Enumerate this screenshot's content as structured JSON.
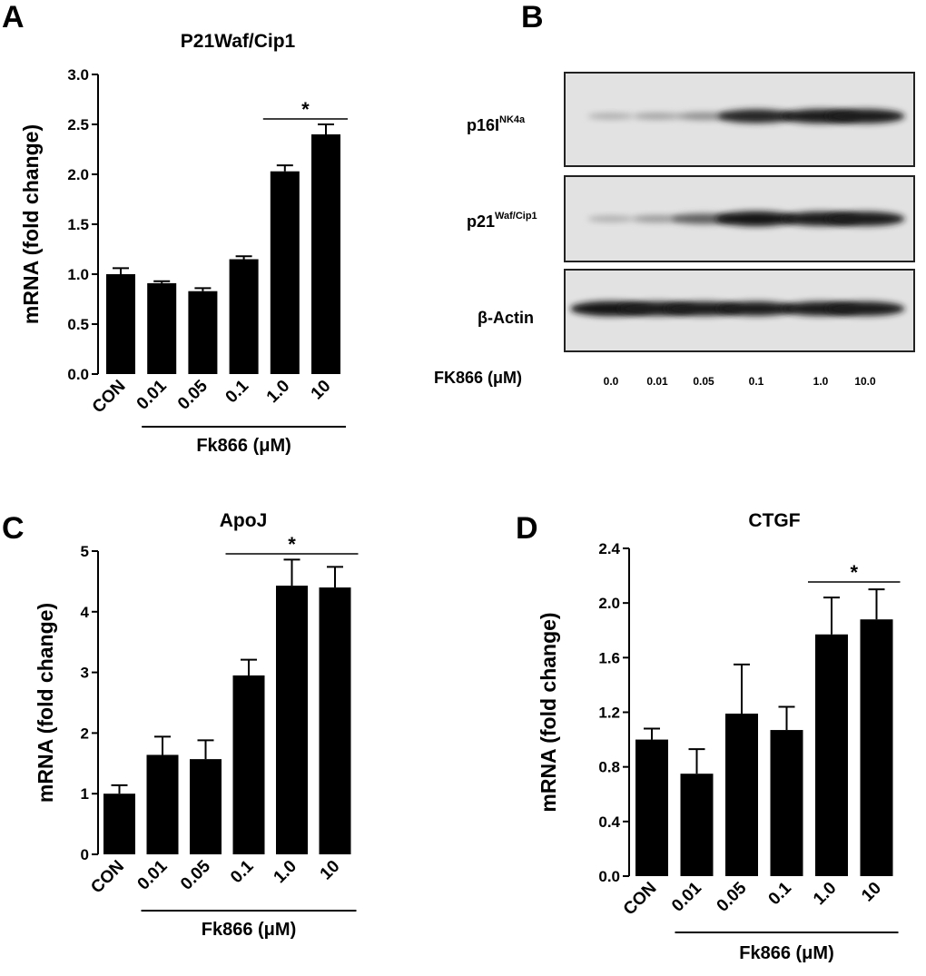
{
  "figure": {
    "panels": [
      "A",
      "B",
      "C",
      "D"
    ],
    "blot": {
      "rows": [
        {
          "label": "p16I",
          "superscript": "NK4a",
          "intensities": [
            0.15,
            0.2,
            0.3,
            0.85,
            0.9,
            0.9
          ]
        },
        {
          "label": "p21",
          "superscript": "Waf/Cip1",
          "intensities": [
            0.15,
            0.25,
            0.55,
            0.95,
            0.9,
            0.9
          ]
        },
        {
          "label": "β-Actin",
          "superscript": "",
          "intensities": [
            0.95,
            0.9,
            0.9,
            0.9,
            0.9,
            0.9
          ]
        }
      ],
      "treatment_label": "FK866 (μM)",
      "lanes": [
        "0.0",
        "0.01",
        "0.05",
        "0.1",
        "1.0",
        "10.0"
      ]
    }
  },
  "chart_data": [
    {
      "panel": "A",
      "type": "bar",
      "title": "P21Waf/Cip1",
      "ylabel": "mRNA (fold change)",
      "categories": [
        "CON",
        "0.01",
        "0.05",
        "0.1",
        "1.0",
        "10"
      ],
      "values": [
        1.0,
        0.91,
        0.83,
        1.15,
        2.03,
        2.4
      ],
      "errors": [
        0.06,
        0.02,
        0.03,
        0.03,
        0.06,
        0.1
      ],
      "ylim": [
        0,
        3.0
      ],
      "yticks": [
        "0.0",
        "0.5",
        "1.0",
        "1.5",
        "2.0",
        "2.5",
        "3.0"
      ],
      "group_label": "Fk866 (μM)",
      "significance": "*"
    },
    {
      "panel": "C",
      "type": "bar",
      "title": "ApoJ",
      "ylabel": "mRNA (fold change)",
      "categories": [
        "CON",
        "0.01",
        "0.05",
        "0.1",
        "1.0",
        "10"
      ],
      "values": [
        1.0,
        1.64,
        1.57,
        2.95,
        4.43,
        4.4
      ],
      "errors": [
        0.14,
        0.3,
        0.31,
        0.26,
        0.43,
        0.34
      ],
      "ylim": [
        0,
        5
      ],
      "yticks": [
        "0",
        "1",
        "2",
        "3",
        "4",
        "5"
      ],
      "group_label": "Fk866 (μM)",
      "significance": "*"
    },
    {
      "panel": "D",
      "type": "bar",
      "title": "CTGF",
      "ylabel": "mRNA (fold change)",
      "categories": [
        "CON",
        "0.01",
        "0.05",
        "0.1",
        "1.0",
        "10"
      ],
      "values": [
        1.0,
        0.75,
        1.19,
        1.07,
        1.77,
        1.88
      ],
      "errors": [
        0.08,
        0.18,
        0.36,
        0.17,
        0.27,
        0.22
      ],
      "ylim": [
        0,
        2.4
      ],
      "yticks": [
        "0.0",
        "0.4",
        "0.8",
        "1.2",
        "1.6",
        "2.0",
        "2.4"
      ],
      "group_label": "Fk866 (μM)",
      "significance": "*"
    }
  ]
}
